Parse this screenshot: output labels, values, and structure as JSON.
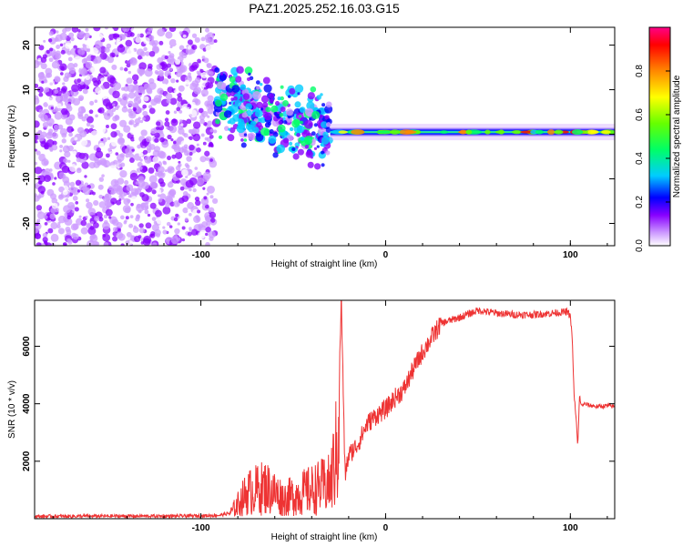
{
  "figure_title": "PAZ1.2025.252.16.03.G15",
  "colors": {
    "snr_line": "#ee3333",
    "axis": "#000000",
    "background": "#ffffff"
  },
  "chart_data": [
    {
      "type": "heatmap",
      "name": "spectrogram",
      "title": "PAZ1.2025.252.16.03.G15",
      "xlabel": "Height of straight line (km)",
      "ylabel": "Frequency (Hz)",
      "xlim": [
        -190,
        124
      ],
      "ylim": [
        -25,
        24
      ],
      "x_ticks": [
        -100,
        0,
        100
      ],
      "x_tick_labels": [
        "-100",
        "0",
        "100"
      ],
      "y_ticks": [
        -20,
        -10,
        0,
        10,
        20
      ],
      "y_tick_labels": [
        "-20",
        "-10",
        "0",
        "10",
        "20"
      ],
      "colorbar": {
        "label": "Normalized spectral amplitude",
        "range": [
          0,
          1
        ],
        "ticks": [
          0.0,
          0.2,
          0.4,
          0.6,
          0.8
        ],
        "tick_labels": [
          "0.0",
          "0.2",
          "0.4",
          "0.6",
          "0.8"
        ],
        "colormap": [
          "#ffffff",
          "#cc99ff",
          "#8800ff",
          "#0000ff",
          "#00ccff",
          "#00ff66",
          "#66ff00",
          "#ffff00",
          "#ff8800",
          "#ff0000",
          "#ff0088"
        ]
      },
      "regions": [
        {
          "description": "noise",
          "x_range": [
            -190,
            -92
          ],
          "freq_range": [
            -25,
            24
          ],
          "amplitude": 0.12
        },
        {
          "description": "onset blobs",
          "x_range": [
            -92,
            -30
          ],
          "freq_range": [
            -12,
            12
          ],
          "amplitude": 0.25
        },
        {
          "description": "signal tone",
          "x_range": [
            -30,
            124
          ],
          "freq": 0.5,
          "amplitude": 0.55
        }
      ]
    },
    {
      "type": "line",
      "name": "snr",
      "xlabel": "Height of straight line (km)",
      "ylabel": "SNR (10 * v/v)",
      "xlim": [
        -190,
        124
      ],
      "ylim": [
        0,
        7600
      ],
      "x_ticks": [
        -100,
        0,
        100
      ],
      "x_tick_labels": [
        "-100",
        "0",
        "100"
      ],
      "y_ticks": [
        2000,
        4000,
        6000
      ],
      "y_tick_labels": [
        "2000",
        "4000",
        "6000"
      ],
      "series": [
        {
          "name": "SNR",
          "x": [
            -190,
            -150,
            -120,
            -100,
            -90,
            -84,
            -80,
            -75,
            -70,
            -65,
            -60,
            -55,
            -50,
            -45,
            -40,
            -35,
            -30,
            -26,
            -24,
            -22,
            -20,
            -15,
            -10,
            -5,
            0,
            5,
            10,
            15,
            20,
            25,
            30,
            40,
            50,
            60,
            70,
            80,
            90,
            98,
            100,
            101,
            102,
            103,
            104,
            105,
            106,
            107,
            110,
            115,
            120,
            124
          ],
          "values": [
            80,
            90,
            90,
            100,
            120,
            200,
            500,
            900,
            1000,
            1100,
            900,
            700,
            800,
            900,
            1000,
            1100,
            1200,
            2500,
            7700,
            1500,
            2200,
            2600,
            3300,
            3600,
            3800,
            4200,
            4500,
            5200,
            5800,
            6300,
            6800,
            7000,
            7250,
            7150,
            7100,
            7100,
            7150,
            7200,
            7050,
            6300,
            4300,
            3600,
            2500,
            4300,
            3900,
            4000,
            3950,
            3900,
            3930,
            3900
          ]
        }
      ]
    }
  ]
}
